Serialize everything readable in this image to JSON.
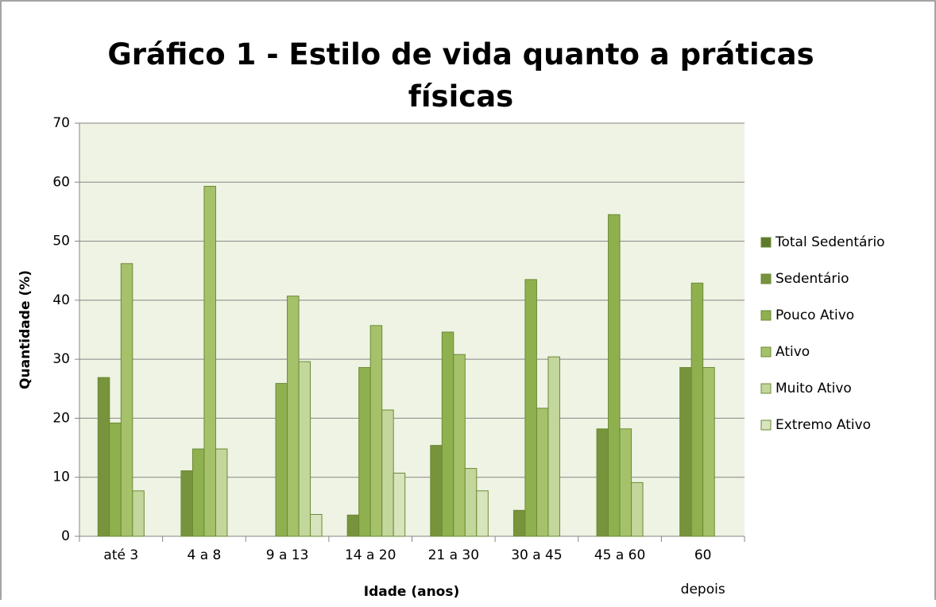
{
  "chart_data": {
    "type": "bar",
    "title": "Gráfico 1 - Estilo de vida quanto a práticas físicas",
    "x_label": "Idade (anos)",
    "y_label": "Quantidade (%)",
    "categories": [
      "até 3",
      "4 a 8",
      "9 a 13",
      "14 a 20",
      "21 a 30",
      "30 a 45",
      "45 a  60",
      "60\ndepois"
    ],
    "series": [
      {
        "name": "Total Sedentário",
        "color": "#5f7a2e",
        "values": [
          0,
          0,
          0,
          0,
          0,
          0,
          0,
          0
        ]
      },
      {
        "name": "Sedentário",
        "color": "#77933c",
        "values": [
          26.9,
          11.1,
          0,
          3.6,
          15.4,
          4.4,
          18.2,
          28.6
        ]
      },
      {
        "name": "Pouco Ativo",
        "color": "#8fb04e",
        "values": [
          19.2,
          14.8,
          25.9,
          28.6,
          34.6,
          43.5,
          54.5,
          42.9
        ]
      },
      {
        "name": "Ativo",
        "color": "#a5c26b",
        "values": [
          46.2,
          59.3,
          40.7,
          35.7,
          30.8,
          21.7,
          18.2,
          28.6
        ]
      },
      {
        "name": "Muito Ativo",
        "color": "#c3d69b",
        "values": [
          7.7,
          14.8,
          29.6,
          21.4,
          11.5,
          30.4,
          9.1,
          0
        ]
      },
      {
        "name": "Extremo Ativo",
        "color": "#d7e4bd",
        "values": [
          0,
          0,
          3.7,
          10.7,
          7.7,
          0,
          0,
          0
        ]
      }
    ],
    "ylim": [
      0,
      70
    ],
    "yticks": [
      0,
      10,
      20,
      30,
      40,
      50,
      60,
      70
    ],
    "grid": true,
    "legend": "right"
  }
}
